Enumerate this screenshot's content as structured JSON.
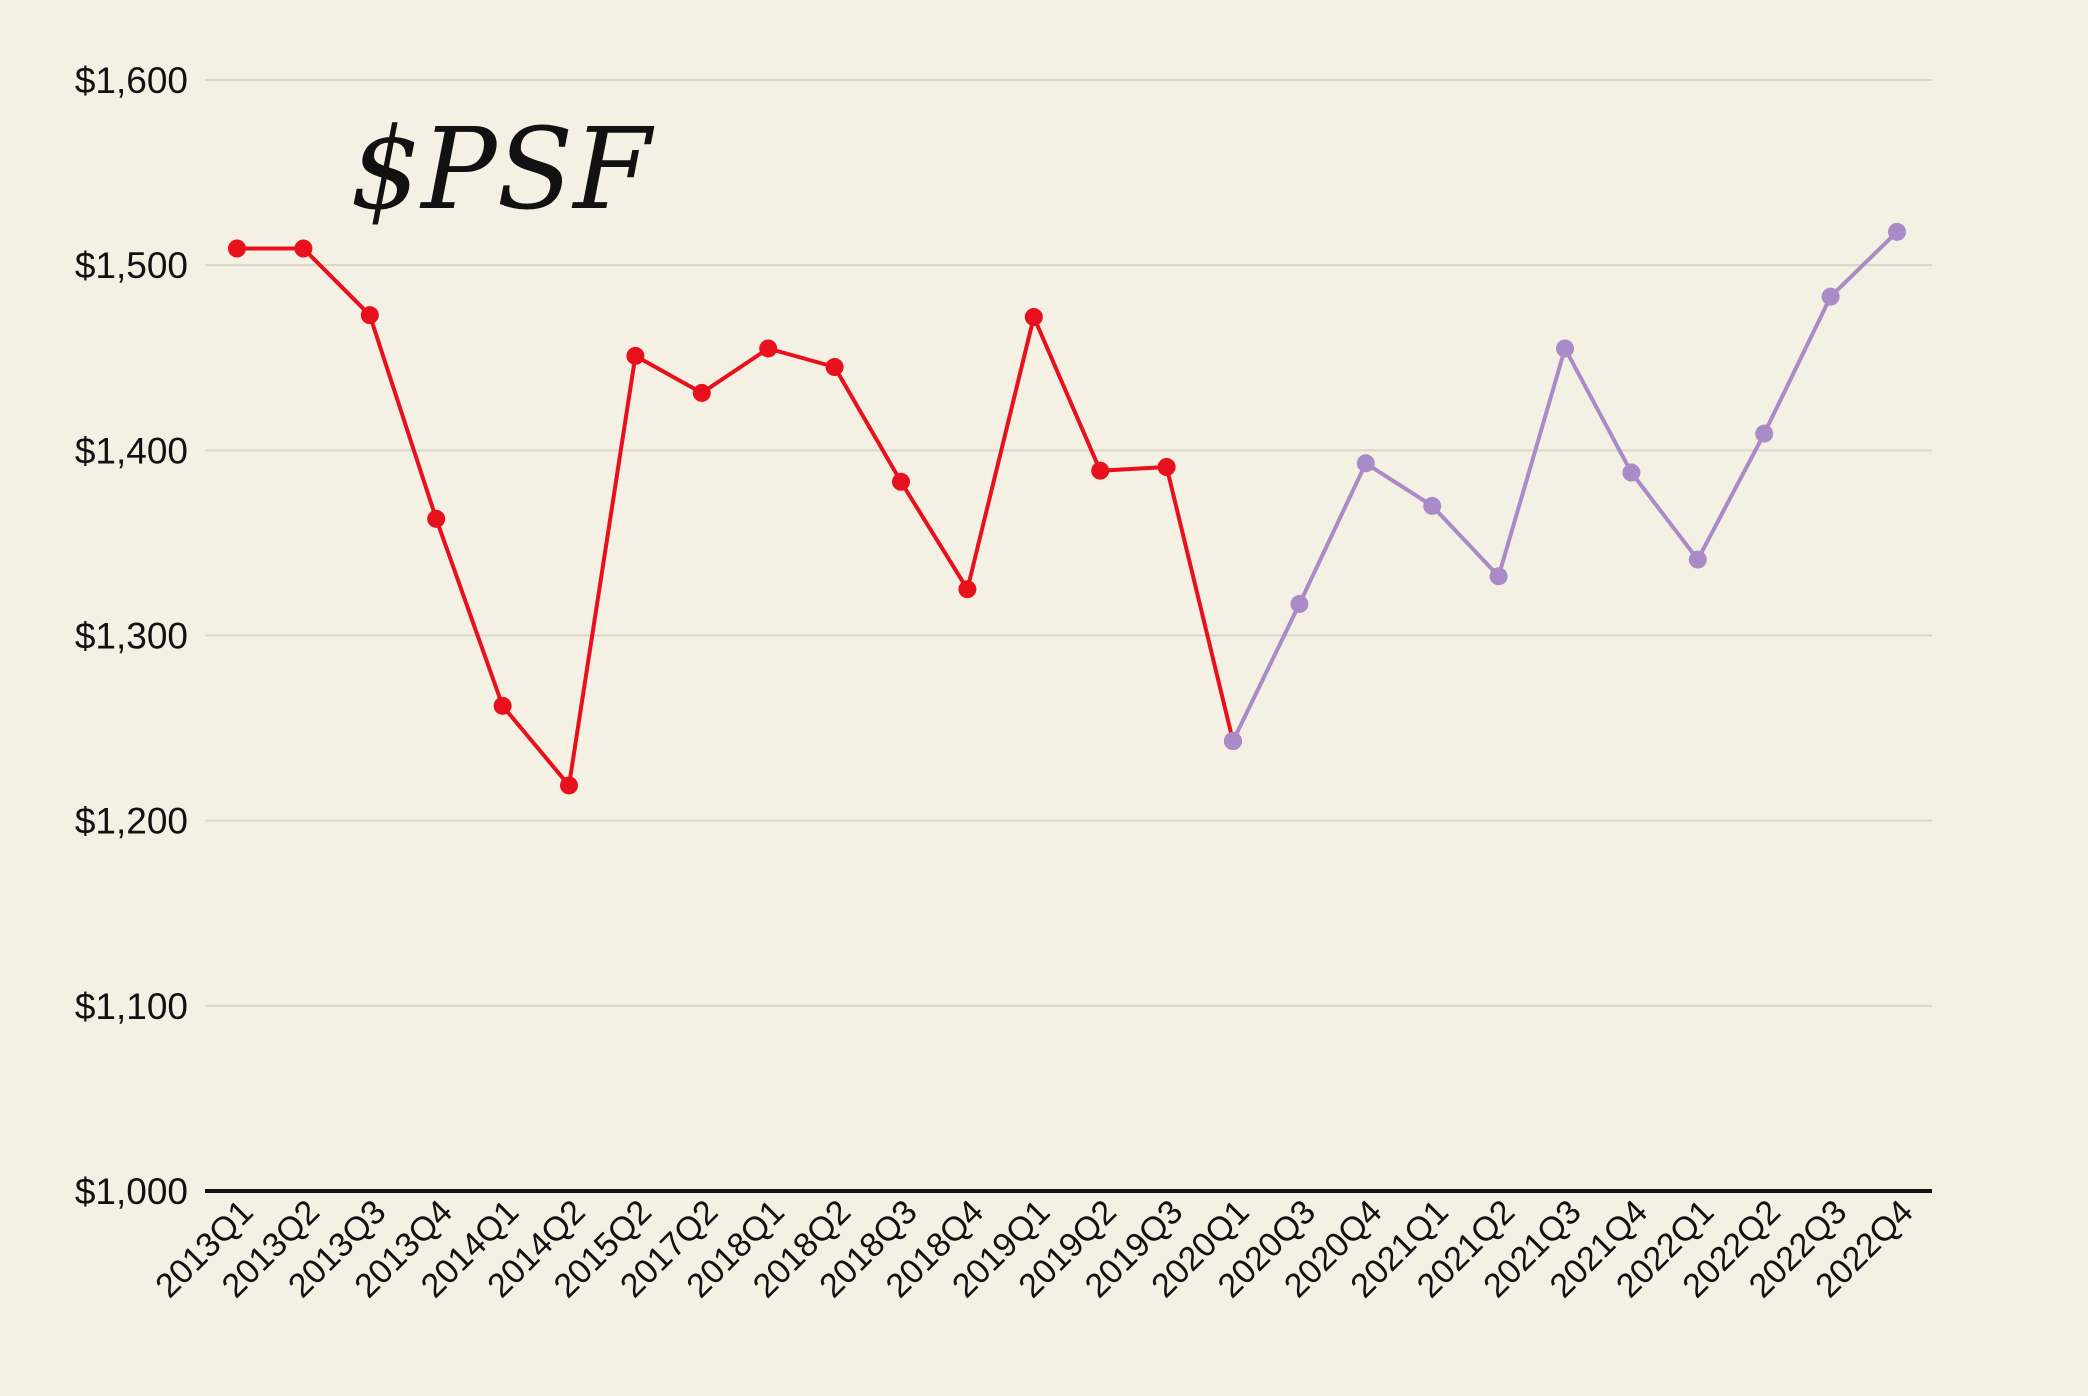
{
  "chart_data": {
    "type": "line",
    "title": "$PSF",
    "xlabel": "",
    "ylabel": "",
    "ylim": [
      1000,
      1600
    ],
    "yticks": [
      1000,
      1100,
      1200,
      1300,
      1400,
      1500,
      1600
    ],
    "ytick_labels": [
      "$1,000",
      "$1,100",
      "$1,200",
      "$1,300",
      "$1,400",
      "$1,500",
      "$1,600"
    ],
    "grid": true,
    "legend": "none",
    "categories": [
      "2013Q1",
      "2013Q2",
      "2013Q3",
      "2013Q4",
      "2014Q1",
      "2014Q2",
      "2015Q2",
      "2017Q2",
      "2018Q1",
      "2018Q2",
      "2018Q3",
      "2018Q4",
      "2019Q1",
      "2019Q2",
      "2019Q3",
      "2020Q1",
      "2020Q3",
      "2020Q4",
      "2021Q1",
      "2021Q2",
      "2021Q3",
      "2021Q4",
      "2022Q1",
      "2022Q2",
      "2022Q3",
      "2022Q4"
    ],
    "series": [
      {
        "color": "#e8101c",
        "values": [
          1509,
          1509,
          1473,
          1363,
          1262,
          1219,
          1451,
          1431,
          1455,
          1445,
          1383,
          1325,
          1472,
          1389,
          1391,
          1243,
          null,
          null,
          null,
          null,
          null,
          null,
          null,
          null,
          null,
          null
        ]
      },
      {
        "color": "#a88bc7",
        "values": [
          null,
          null,
          null,
          null,
          null,
          null,
          null,
          null,
          null,
          null,
          null,
          null,
          null,
          null,
          null,
          1243,
          1317,
          1393,
          1370,
          1332,
          1455,
          1388,
          1341,
          1409,
          1483,
          1518
        ]
      }
    ]
  }
}
